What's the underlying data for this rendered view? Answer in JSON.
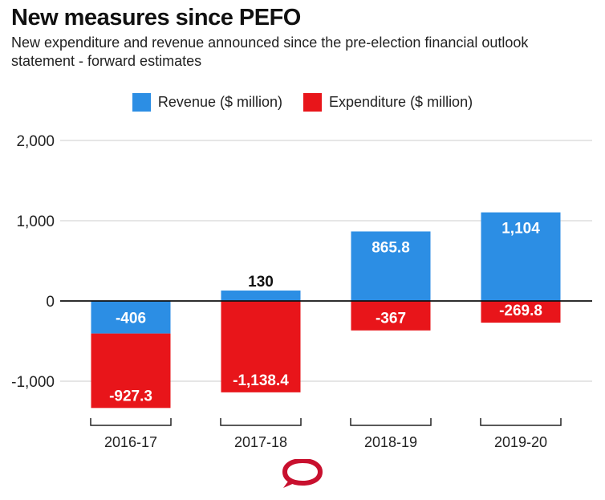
{
  "header": {
    "title": "New measures since PEFO",
    "subtitle": "New expenditure and revenue announced since the pre-election financial outlook statement - forward estimates"
  },
  "legend": {
    "revenue_label": "Revenue ($ million)",
    "expenditure_label": "Expenditure ($ million)"
  },
  "colors": {
    "revenue": "#2c8ee4",
    "expenditure": "#e8151a",
    "logo": "#c8102e",
    "grid": "#cccccc"
  },
  "logo": {
    "icon": "speech-bubble-logo-icon"
  },
  "chart_data": {
    "type": "bar",
    "stacked": true,
    "categories": [
      "2016-17",
      "2017-18",
      "2018-19",
      "2019-20"
    ],
    "series": [
      {
        "name": "Revenue ($ million)",
        "values": [
          -406,
          130,
          865.8,
          1104
        ],
        "labels": [
          "-406",
          "130",
          "865.8",
          "1,104"
        ]
      },
      {
        "name": "Expenditure ($ million)",
        "values": [
          -927.3,
          -1138.4,
          -367,
          -269.8
        ],
        "labels": [
          "-927.3",
          "-1,138.4",
          "-367",
          "-269.8"
        ]
      }
    ],
    "ylim": [
      -1350,
      2000
    ],
    "yticks": [
      2000,
      1000,
      0,
      -1000
    ],
    "ytick_labels": [
      "2,000",
      "1,000",
      "0",
      "-1,000"
    ],
    "grid": true,
    "legend_position": "top-center"
  }
}
